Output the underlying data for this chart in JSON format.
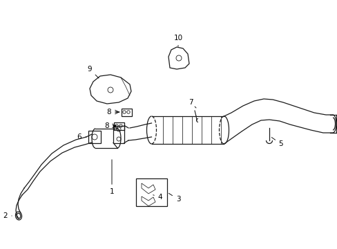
{
  "bg_color": "#ffffff",
  "line_color": "#1a1a1a",
  "fig_width": 4.89,
  "fig_height": 3.6,
  "dpi": 100,
  "xlim": [
    0,
    4.89
  ],
  "ylim": [
    0,
    3.6
  ]
}
